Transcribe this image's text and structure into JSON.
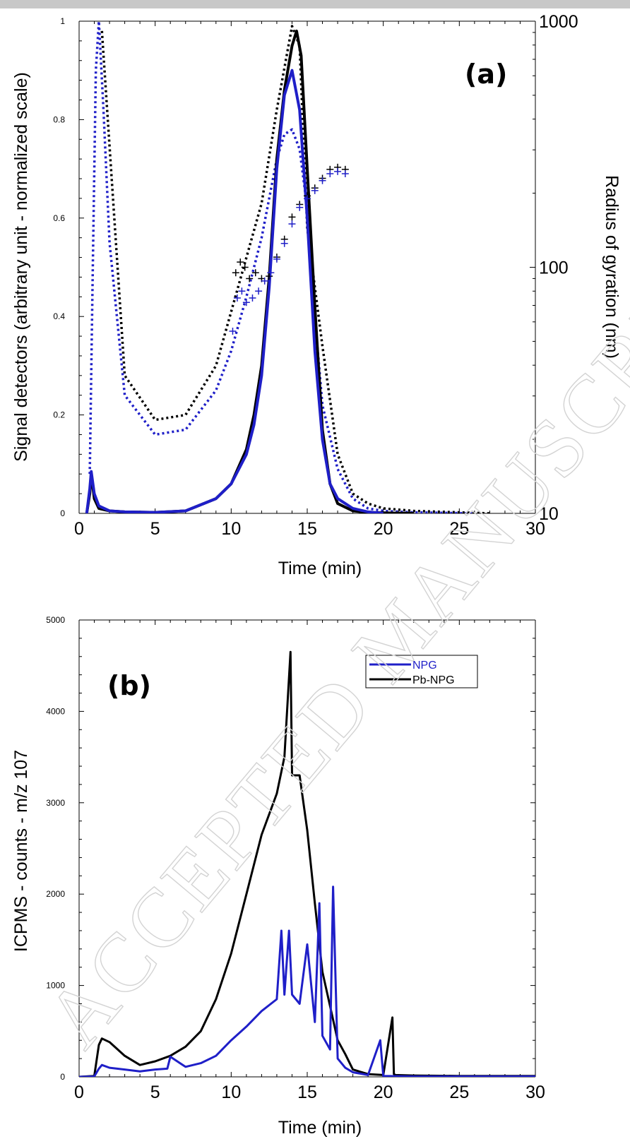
{
  "watermark": "ACCEPTED MANUSCRIPT",
  "colors": {
    "npg": "#1f1fc8",
    "pb_npg": "#000000"
  },
  "chart_data": [
    {
      "panel": "(a)",
      "type": "line",
      "xlabel": "Time (min)",
      "ylabel": "Signal detectors (arbitrary unit - normalized scale)",
      "y2label": "Radius of gyration (nm)",
      "xlim": [
        0,
        30
      ],
      "ylim": [
        0,
        1
      ],
      "y2lim": [
        10,
        1000
      ],
      "y2scale": "log",
      "xticks": [
        "0",
        "5",
        "10",
        "15",
        "20",
        "25",
        "30"
      ],
      "yticks": [
        "0",
        "0.2",
        "0.4",
        "0.6",
        "0.8",
        "1"
      ],
      "y2ticks": [
        "10",
        "100",
        "1000"
      ],
      "grid": false,
      "series": [
        {
          "color": "black",
          "style": "dotted",
          "axis": "left",
          "x": [
            1.5,
            3,
            5,
            7,
            9,
            11,
            12,
            13,
            14,
            14.5,
            15,
            16,
            17,
            18,
            19,
            20,
            22,
            24,
            26,
            27
          ],
          "y": [
            0.98,
            0.28,
            0.19,
            0.2,
            0.3,
            0.52,
            0.63,
            0.82,
            0.99,
            0.95,
            0.58,
            0.34,
            0.12,
            0.04,
            0.02,
            0.01,
            0.005,
            0.003,
            0.001,
            0.0
          ]
        },
        {
          "color": "blue",
          "style": "dotted",
          "axis": "left",
          "x": [
            0.7,
            0.9,
            1.1,
            1.3,
            1.6,
            2,
            3,
            5,
            7,
            9,
            10,
            11,
            12,
            13,
            13.5,
            14,
            14.5,
            15,
            15.5,
            16,
            17,
            18,
            19,
            20,
            22,
            24,
            26
          ],
          "y": [
            0.08,
            0.5,
            0.9,
            1.0,
            0.82,
            0.55,
            0.24,
            0.16,
            0.17,
            0.25,
            0.33,
            0.44,
            0.56,
            0.72,
            0.77,
            0.78,
            0.74,
            0.62,
            0.4,
            0.22,
            0.09,
            0.03,
            0.01,
            0.005,
            0.002,
            0.001,
            0.0
          ]
        },
        {
          "color": "black",
          "style": "solid",
          "axis": "left",
          "x": [
            0.5,
            0.7,
            0.8,
            1,
            1.3,
            2,
            3,
            5,
            7,
            9,
            10,
            11,
            11.5,
            12,
            12.5,
            13,
            13.5,
            14,
            14.3,
            14.6,
            15,
            15.5,
            16,
            16.5,
            17,
            18,
            19,
            20,
            22
          ],
          "y": [
            0.0,
            0.04,
            0.08,
            0.03,
            0.01,
            0.005,
            0.003,
            0.002,
            0.005,
            0.03,
            0.06,
            0.13,
            0.2,
            0.3,
            0.48,
            0.72,
            0.86,
            0.95,
            0.98,
            0.93,
            0.7,
            0.42,
            0.17,
            0.06,
            0.02,
            0.005,
            0.002,
            0.001,
            0.0
          ]
        },
        {
          "color": "blue",
          "style": "solid",
          "axis": "left",
          "x": [
            0.5,
            0.7,
            0.8,
            1,
            1.3,
            2,
            3,
            5,
            7,
            9,
            10,
            11,
            11.5,
            12,
            12.5,
            13,
            13.5,
            14,
            14.5,
            15,
            15.5,
            16,
            16.5,
            17,
            18,
            19,
            20
          ],
          "y": [
            0.0,
            0.05,
            0.085,
            0.04,
            0.015,
            0.005,
            0.003,
            0.002,
            0.005,
            0.03,
            0.06,
            0.12,
            0.18,
            0.28,
            0.46,
            0.7,
            0.85,
            0.9,
            0.82,
            0.6,
            0.33,
            0.15,
            0.06,
            0.03,
            0.01,
            0.003,
            0.0
          ]
        },
        {
          "color": "black",
          "style": "cross",
          "axis": "right",
          "x": [
            10.3,
            10.6,
            10.9,
            11.2,
            11.6,
            12,
            12.5,
            13,
            13.5,
            14,
            14.5,
            15,
            15.5,
            16,
            16.5,
            17,
            17.5
          ],
          "y": [
            95,
            105,
            100,
            90,
            95,
            90,
            92,
            110,
            130,
            160,
            180,
            195,
            210,
            230,
            250,
            255,
            250
          ]
        },
        {
          "color": "blue",
          "style": "cross",
          "axis": "right",
          "x": [
            10.1,
            10.4,
            10.7,
            11,
            11.4,
            11.8,
            12.2,
            12.6,
            13,
            13.5,
            14,
            14.5,
            15,
            15.5,
            16,
            16.5,
            17,
            17.5
          ],
          "y": [
            55,
            75,
            80,
            72,
            75,
            80,
            88,
            95,
            108,
            125,
            150,
            175,
            190,
            205,
            225,
            240,
            245,
            240
          ]
        }
      ]
    },
    {
      "panel": "(b)",
      "type": "line",
      "xlabel": "Time (min)",
      "ylabel": "ICPMS - counts - m/z 107",
      "xlim": [
        0,
        30
      ],
      "ylim": [
        0,
        5000
      ],
      "xticks": [
        "0",
        "5",
        "10",
        "15",
        "20",
        "25",
        "30"
      ],
      "yticks": [
        "0",
        "1000",
        "2000",
        "3000",
        "4000",
        "5000"
      ],
      "grid": false,
      "legend": {
        "position": "top-right",
        "entries": [
          "NPG",
          "Pb-NPG"
        ]
      },
      "series": [
        {
          "name": "Pb-NPG",
          "color": "black",
          "x": [
            0,
            1,
            1.3,
            1.5,
            2,
            3,
            4,
            5,
            6,
            7,
            8,
            9,
            10,
            11,
            12,
            13,
            13.5,
            13.9,
            14,
            14.5,
            15,
            15.5,
            16,
            17,
            17.5,
            18,
            19,
            20,
            20.6,
            20.7,
            20.8,
            22,
            25,
            30
          ],
          "y": [
            0,
            10,
            350,
            420,
            380,
            230,
            130,
            170,
            230,
            330,
            500,
            850,
            1350,
            2000,
            2650,
            3100,
            3500,
            4650,
            3300,
            3300,
            2700,
            1900,
            1150,
            400,
            250,
            80,
            30,
            20,
            650,
            30,
            20,
            15,
            10,
            10
          ]
        },
        {
          "name": "NPG",
          "color": "blue",
          "x": [
            0,
            1,
            1.3,
            1.5,
            2,
            3,
            4,
            5,
            5.8,
            6,
            7,
            8,
            9,
            10,
            11,
            12,
            13,
            13.3,
            13.5,
            13.8,
            14,
            14.5,
            15,
            15.5,
            15.8,
            16,
            16.5,
            16.7,
            17,
            17.5,
            18,
            19,
            19.8,
            20,
            22,
            25,
            30
          ],
          "y": [
            0,
            5,
            90,
            130,
            100,
            80,
            60,
            80,
            90,
            220,
            110,
            150,
            230,
            400,
            550,
            720,
            850,
            1600,
            900,
            1600,
            900,
            800,
            1450,
            600,
            1900,
            450,
            300,
            2080,
            200,
            100,
            50,
            20,
            400,
            10,
            5,
            5,
            5
          ]
        }
      ]
    }
  ]
}
